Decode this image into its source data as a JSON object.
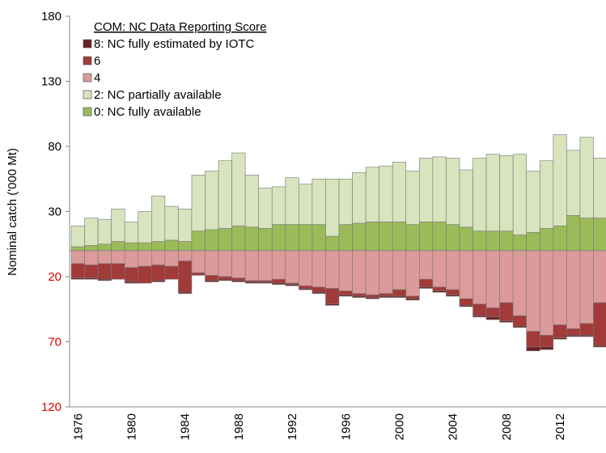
{
  "chart_data": {
    "type": "diverging_stacked_bar",
    "y_label": "Nominal catch ('000 Mt)",
    "legend_title": "COM: NC Data Reporting Score",
    "legend": "upper left",
    "ylim": [
      -120,
      180
    ],
    "yticks": [
      180,
      130,
      80,
      30,
      {
        "value": -20,
        "label": "20"
      },
      {
        "value": -70,
        "label": "70"
      },
      {
        "value": -120,
        "label": "120"
      }
    ],
    "negative_tick_color": "#e00000",
    "categories": [
      "1976",
      null,
      null,
      null,
      "1980",
      null,
      null,
      null,
      "1984",
      null,
      null,
      null,
      "1988",
      null,
      null,
      null,
      "1992",
      null,
      null,
      null,
      "1996",
      null,
      null,
      null,
      "2000",
      null,
      null,
      null,
      "2004",
      null,
      null,
      null,
      "2008",
      null,
      null,
      null,
      "2012",
      null,
      null,
      null
    ],
    "series": [
      {
        "name": "8: NC fully estimated by IOTC",
        "color": "#6b2022",
        "side": "down",
        "values": [
          -1,
          -1,
          -1,
          0,
          -1,
          0,
          -1,
          0,
          -1,
          0,
          -1,
          -1,
          -1,
          -1,
          -1,
          -1,
          -1,
          -1,
          -1,
          -1,
          -1,
          -1,
          -1,
          -1,
          -1,
          -1,
          -1,
          -1,
          -1,
          -1,
          -1,
          -2,
          -1,
          -1,
          -3,
          -2,
          -1,
          -1,
          -1,
          -1
        ]
      },
      {
        "name": "6",
        "color": "#a33a3a",
        "side": "down",
        "values": [
          -11,
          -10,
          -12,
          -12,
          -11,
          -13,
          -12,
          -10,
          -24,
          -2,
          -4,
          -2,
          -2,
          -1,
          -1,
          -3,
          -1,
          -2,
          -4,
          -12,
          -3,
          -2,
          -2,
          -2,
          -5,
          -2,
          -6,
          -3,
          -4,
          -5,
          -9,
          -7,
          -14,
          -8,
          -12,
          -9,
          -10,
          -5,
          -9,
          -33
        ]
      },
      {
        "name": "4",
        "color": "#dc9a9a",
        "side": "down",
        "values": [
          -10,
          -11,
          -10,
          -10,
          -13,
          -12,
          -11,
          -12,
          -8,
          -17,
          -19,
          -20,
          -21,
          -23,
          -23,
          -22,
          -25,
          -27,
          -28,
          -29,
          -31,
          -33,
          -34,
          -33,
          -30,
          -35,
          -22,
          -28,
          -30,
          -37,
          -41,
          -44,
          -40,
          -50,
          -62,
          -65,
          -57,
          -60,
          -56,
          -40
        ]
      },
      {
        "name": "2: NC partially available",
        "color": "#d7e4bd",
        "side": "up",
        "values": [
          16,
          21,
          19,
          25,
          16,
          24,
          35,
          26,
          25,
          43,
          45,
          52,
          56,
          40,
          31,
          29,
          36,
          31,
          35,
          44,
          35,
          39,
          42,
          43,
          46,
          41,
          49,
          50,
          51,
          44,
          56,
          59,
          58,
          62,
          47,
          52,
          70,
          50,
          62,
          46
        ]
      },
      {
        "name": "0: NC fully available",
        "color": "#9bbb59",
        "side": "up",
        "values": [
          3,
          4,
          5,
          7,
          6,
          6,
          7,
          8,
          7,
          15,
          16,
          17,
          19,
          18,
          17,
          20,
          20,
          20,
          20,
          11,
          20,
          21,
          22,
          22,
          22,
          20,
          22,
          22,
          20,
          18,
          15,
          15,
          15,
          12,
          14,
          17,
          19,
          27,
          25,
          25
        ]
      }
    ]
  }
}
